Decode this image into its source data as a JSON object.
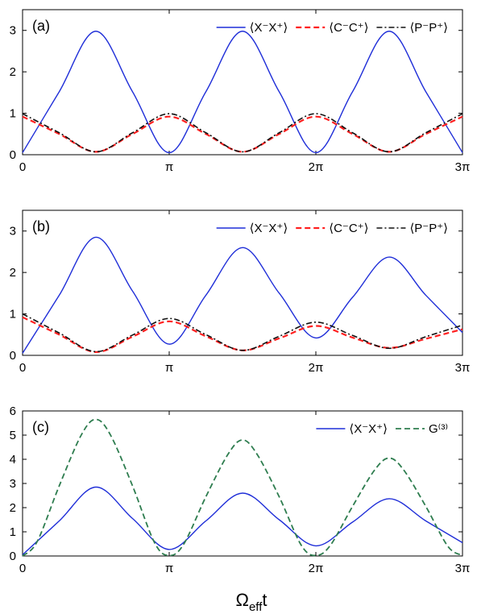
{
  "xlabel": {
    "main": "Ω",
    "sub": "eff",
    "tail": "t"
  },
  "chart_data": [
    {
      "type": "line",
      "panel_label": "(a)",
      "xlim": [
        0,
        3
      ],
      "x_unit": "π",
      "x_ticks": [
        {
          "value": 0,
          "label": "0"
        },
        {
          "value": 1,
          "label": "π"
        },
        {
          "value": 2,
          "label": "2π"
        },
        {
          "value": 3,
          "label": "3π"
        }
      ],
      "ylim": [
        0,
        3.5
      ],
      "y_ticks": [
        {
          "value": 0,
          "label": "0"
        },
        {
          "value": 1,
          "label": "1"
        },
        {
          "value": 2,
          "label": "2"
        },
        {
          "value": 3,
          "label": "3"
        }
      ],
      "legend_position": "top-right",
      "series": [
        {
          "name": "⟨X⁻X⁺⟩",
          "color": "#1f2ed8",
          "dash": "solid",
          "width": 1.4,
          "x": [
            0,
            0.25,
            0.5,
            0.75,
            1,
            1.25,
            1.5,
            1.75,
            2,
            2.25,
            2.5,
            2.75,
            3
          ],
          "y": [
            0.05,
            1.52,
            2.98,
            1.52,
            0.05,
            1.52,
            2.98,
            1.52,
            0.05,
            1.52,
            2.98,
            1.52,
            0.05
          ]
        },
        {
          "name": "⟨C⁻C⁺⟩",
          "color": "#ff2020",
          "dash": "dashed",
          "width": 2.2,
          "x": [
            0,
            0.25,
            0.5,
            0.75,
            1,
            1.25,
            1.5,
            1.75,
            2,
            2.25,
            2.5,
            2.75,
            3
          ],
          "y": [
            0.92,
            0.5,
            0.07,
            0.5,
            0.92,
            0.5,
            0.07,
            0.5,
            0.92,
            0.5,
            0.07,
            0.5,
            0.92
          ]
        },
        {
          "name": "⟨P⁻P⁺⟩",
          "color": "#111111",
          "dash": "dashdot",
          "width": 1.6,
          "x": [
            0,
            0.25,
            0.5,
            0.75,
            1,
            1.25,
            1.5,
            1.75,
            2,
            2.25,
            2.5,
            2.75,
            3
          ],
          "y": [
            0.99,
            0.53,
            0.07,
            0.53,
            0.99,
            0.53,
            0.07,
            0.53,
            0.99,
            0.53,
            0.07,
            0.53,
            0.99
          ]
        }
      ]
    },
    {
      "type": "line",
      "panel_label": "(b)",
      "xlim": [
        0,
        3
      ],
      "x_unit": "π",
      "x_ticks": [
        {
          "value": 0,
          "label": "0"
        },
        {
          "value": 1,
          "label": "π"
        },
        {
          "value": 2,
          "label": "2π"
        },
        {
          "value": 3,
          "label": "3π"
        }
      ],
      "ylim": [
        0,
        3.5
      ],
      "y_ticks": [
        {
          "value": 0,
          "label": "0"
        },
        {
          "value": 1,
          "label": "1"
        },
        {
          "value": 2,
          "label": "2"
        },
        {
          "value": 3,
          "label": "3"
        }
      ],
      "legend_position": "top-right",
      "series": [
        {
          "name": "⟨X⁻X⁺⟩",
          "color": "#1f2ed8",
          "dash": "solid",
          "width": 1.4,
          "x": [
            0,
            0.25,
            0.5,
            0.75,
            1,
            1.25,
            1.5,
            1.75,
            2,
            2.25,
            2.5,
            2.75,
            3
          ],
          "y": [
            0.05,
            1.45,
            2.85,
            1.55,
            0.27,
            1.45,
            2.6,
            1.5,
            0.42,
            1.4,
            2.37,
            1.45,
            0.55
          ]
        },
        {
          "name": "⟨C⁻C⁺⟩",
          "color": "#ff2020",
          "dash": "dashed",
          "width": 2.2,
          "x": [
            0,
            0.25,
            0.5,
            0.75,
            1,
            1.25,
            1.5,
            1.75,
            2,
            2.25,
            2.5,
            2.75,
            3
          ],
          "y": [
            0.92,
            0.5,
            0.08,
            0.45,
            0.82,
            0.46,
            0.12,
            0.41,
            0.71,
            0.43,
            0.18,
            0.4,
            0.63
          ]
        },
        {
          "name": "⟨P⁻P⁺⟩",
          "color": "#111111",
          "dash": "dashdot",
          "width": 1.6,
          "x": [
            0,
            0.25,
            0.5,
            0.75,
            1,
            1.25,
            1.5,
            1.75,
            2,
            2.25,
            2.5,
            2.75,
            3
          ],
          "y": [
            1.0,
            0.54,
            0.09,
            0.49,
            0.89,
            0.5,
            0.12,
            0.46,
            0.8,
            0.48,
            0.17,
            0.45,
            0.73
          ]
        }
      ]
    },
    {
      "type": "line",
      "panel_label": "(c)",
      "xlim": [
        0,
        3
      ],
      "x_unit": "π",
      "x_ticks": [
        {
          "value": 0,
          "label": "0"
        },
        {
          "value": 1,
          "label": "π"
        },
        {
          "value": 2,
          "label": "2π"
        },
        {
          "value": 3,
          "label": "3π"
        }
      ],
      "ylim": [
        0,
        6
      ],
      "y_ticks": [
        {
          "value": 0,
          "label": "0"
        },
        {
          "value": 1,
          "label": "1"
        },
        {
          "value": 2,
          "label": "2"
        },
        {
          "value": 3,
          "label": "3"
        },
        {
          "value": 4,
          "label": "4"
        },
        {
          "value": 5,
          "label": "5"
        },
        {
          "value": 6,
          "label": "6"
        }
      ],
      "legend_position": "top-right",
      "series": [
        {
          "name": "⟨X⁻X⁺⟩",
          "color": "#1f2ed8",
          "dash": "solid",
          "width": 1.4,
          "x": [
            0,
            0.25,
            0.5,
            0.75,
            1,
            1.25,
            1.5,
            1.75,
            2,
            2.25,
            2.5,
            2.75,
            3
          ],
          "y": [
            0.05,
            1.45,
            2.85,
            1.55,
            0.27,
            1.45,
            2.6,
            1.5,
            0.42,
            1.4,
            2.37,
            1.45,
            0.55
          ]
        },
        {
          "name": "G⁽³⁾",
          "color": "#2e7d4f",
          "dash": "dashed",
          "width": 1.8,
          "x": [
            0,
            0.1,
            0.25,
            0.4,
            0.5,
            0.6,
            0.75,
            0.9,
            1,
            1.1,
            1.25,
            1.4,
            1.5,
            1.6,
            1.75,
            1.9,
            2,
            2.1,
            2.25,
            2.4,
            2.5,
            2.6,
            2.75,
            2.9,
            3
          ],
          "y": [
            0.0,
            0.6,
            2.9,
            5.0,
            5.65,
            5.0,
            2.9,
            0.55,
            0.02,
            0.5,
            2.45,
            4.2,
            4.8,
            4.2,
            2.45,
            0.45,
            0.02,
            0.45,
            2.05,
            3.55,
            4.05,
            3.55,
            2.05,
            0.4,
            0.02
          ]
        }
      ]
    }
  ]
}
